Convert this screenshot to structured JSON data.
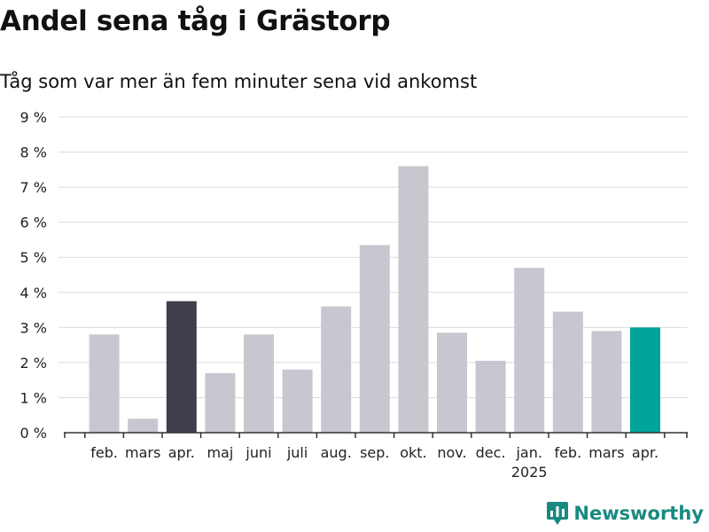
{
  "title": "Andel sena tåg i Grästorp",
  "subtitle": "Tåg som var mer än fem minuter sena vid ankomst",
  "brand": {
    "name": "Newsworthy"
  },
  "colors": {
    "default_bar": "#c8c7d0",
    "highlight_dark": "#3f3e4d",
    "highlight_accent": "#00a39a",
    "grid": "#dcdcdc",
    "brand": "#1a8a80"
  },
  "chart_data": {
    "type": "bar",
    "categories": [
      "",
      "feb.",
      "mars",
      "apr.",
      "maj",
      "juni",
      "juli",
      "aug.",
      "sep.",
      "okt.",
      "nov.",
      "dec.",
      "jan.",
      "feb.",
      "mars",
      "apr."
    ],
    "year_label": {
      "text": "2025",
      "under_category_index": 12
    },
    "values": [
      null,
      2.8,
      0.4,
      3.75,
      1.7,
      2.8,
      1.8,
      3.6,
      5.35,
      7.6,
      2.85,
      2.05,
      4.7,
      3.45,
      2.9,
      3.0
    ],
    "highlight": {
      "3": "highlight_dark",
      "15": "highlight_accent"
    },
    "y_ticks": [
      "0 %",
      "1 %",
      "2 %",
      "3 %",
      "4 %",
      "5 %",
      "6 %",
      "7 %",
      "8 %",
      "9 %"
    ],
    "ylim": [
      0,
      9
    ],
    "grid": true,
    "xlabel": "",
    "ylabel": ""
  }
}
